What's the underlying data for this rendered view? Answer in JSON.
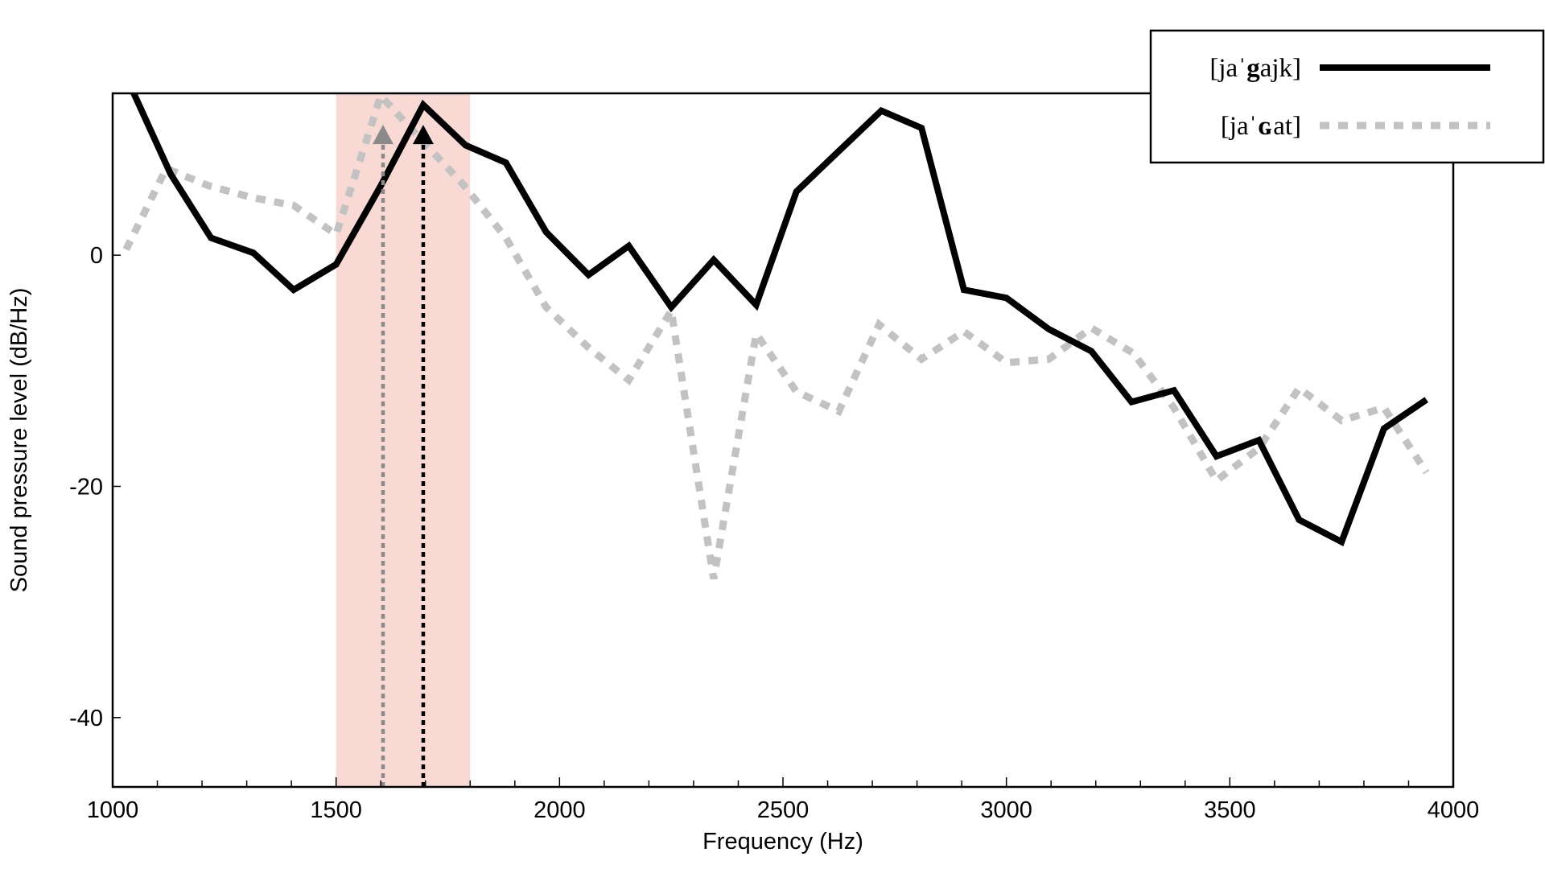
{
  "chart_data": {
    "type": "line",
    "xlabel": "Frequency (Hz)",
    "ylabel": "Sound pressure level (dB/Hz)",
    "xlim": [
      1000,
      4000
    ],
    "ylim": [
      -46,
      14
    ],
    "x_ticks": [
      1000,
      1500,
      2000,
      2500,
      3000,
      3500,
      4000
    ],
    "x_tick_labels": [
      "1000",
      "1500",
      "2000",
      "2500",
      "3000",
      "3500",
      "4000"
    ],
    "x_minor_tick_step": 100,
    "y_ticks": [
      0,
      -20,
      -40
    ],
    "y_tick_labels": [
      "0",
      "-20",
      "-40"
    ],
    "grid": false,
    "legend_position": "top-right",
    "highlight_band": {
      "x_range": [
        1500,
        1800
      ],
      "color": "#f9d9d4"
    },
    "series": [
      {
        "name": "[jaˈgajk]",
        "name_prefix": "[jaˈ",
        "name_bold": "g",
        "name_suffix": "ajk]",
        "color": "#000000",
        "style": "solid",
        "peak_marker": {
          "x": 1695,
          "y": 11,
          "color": "#000000"
        },
        "x": [
          1000,
          1130,
          1220,
          1315,
          1405,
          1500,
          1600,
          1695,
          1790,
          1880,
          1970,
          2065,
          2155,
          2250,
          2345,
          2440,
          2530,
          2625,
          2720,
          2810,
          2905,
          3000,
          3095,
          3190,
          3280,
          3375,
          3470,
          3565,
          3655,
          3750,
          3845,
          3940
        ],
        "y": [
          18,
          7,
          1.5,
          0.2,
          -3,
          -0.8,
          6,
          13,
          9.5,
          8,
          2,
          -1.7,
          0.8,
          -4.5,
          -0.4,
          -4.3,
          5.5,
          9,
          12.5,
          11,
          -3,
          -3.7,
          -6.4,
          -8.3,
          -12.7,
          -11.7,
          -17.4,
          -16,
          -22.9,
          -24.8,
          -15,
          -12.5
        ]
      },
      {
        "name": "[jaˈɢat]",
        "name_prefix": "[jaˈ",
        "name_bold": "ɢ",
        "name_suffix": "at]",
        "color": "#c2c2c2",
        "style": "dashed",
        "peak_marker": {
          "x": 1605,
          "y": 11,
          "color": "#8a8a8a"
        },
        "x": [
          1030,
          1120,
          1215,
          1310,
          1405,
          1500,
          1600,
          1690,
          1785,
          1880,
          1970,
          2065,
          2155,
          2250,
          2345,
          2440,
          2530,
          2625,
          2715,
          2810,
          2905,
          3000,
          3095,
          3190,
          3285,
          3375,
          3470,
          3565,
          3655,
          3750,
          3845,
          3940
        ],
        "y": [
          0.5,
          7.5,
          6,
          5,
          4.3,
          1.8,
          13.8,
          10,
          6.1,
          1.5,
          -4.5,
          -8,
          -10.8,
          -4.8,
          -28,
          -6.8,
          -11.8,
          -13.5,
          -6,
          -9,
          -6.6,
          -9.3,
          -9,
          -6.3,
          -8.5,
          -13.2,
          -19.5,
          -16.7,
          -11.5,
          -14.3,
          -13.2,
          -18.8
        ]
      }
    ]
  }
}
